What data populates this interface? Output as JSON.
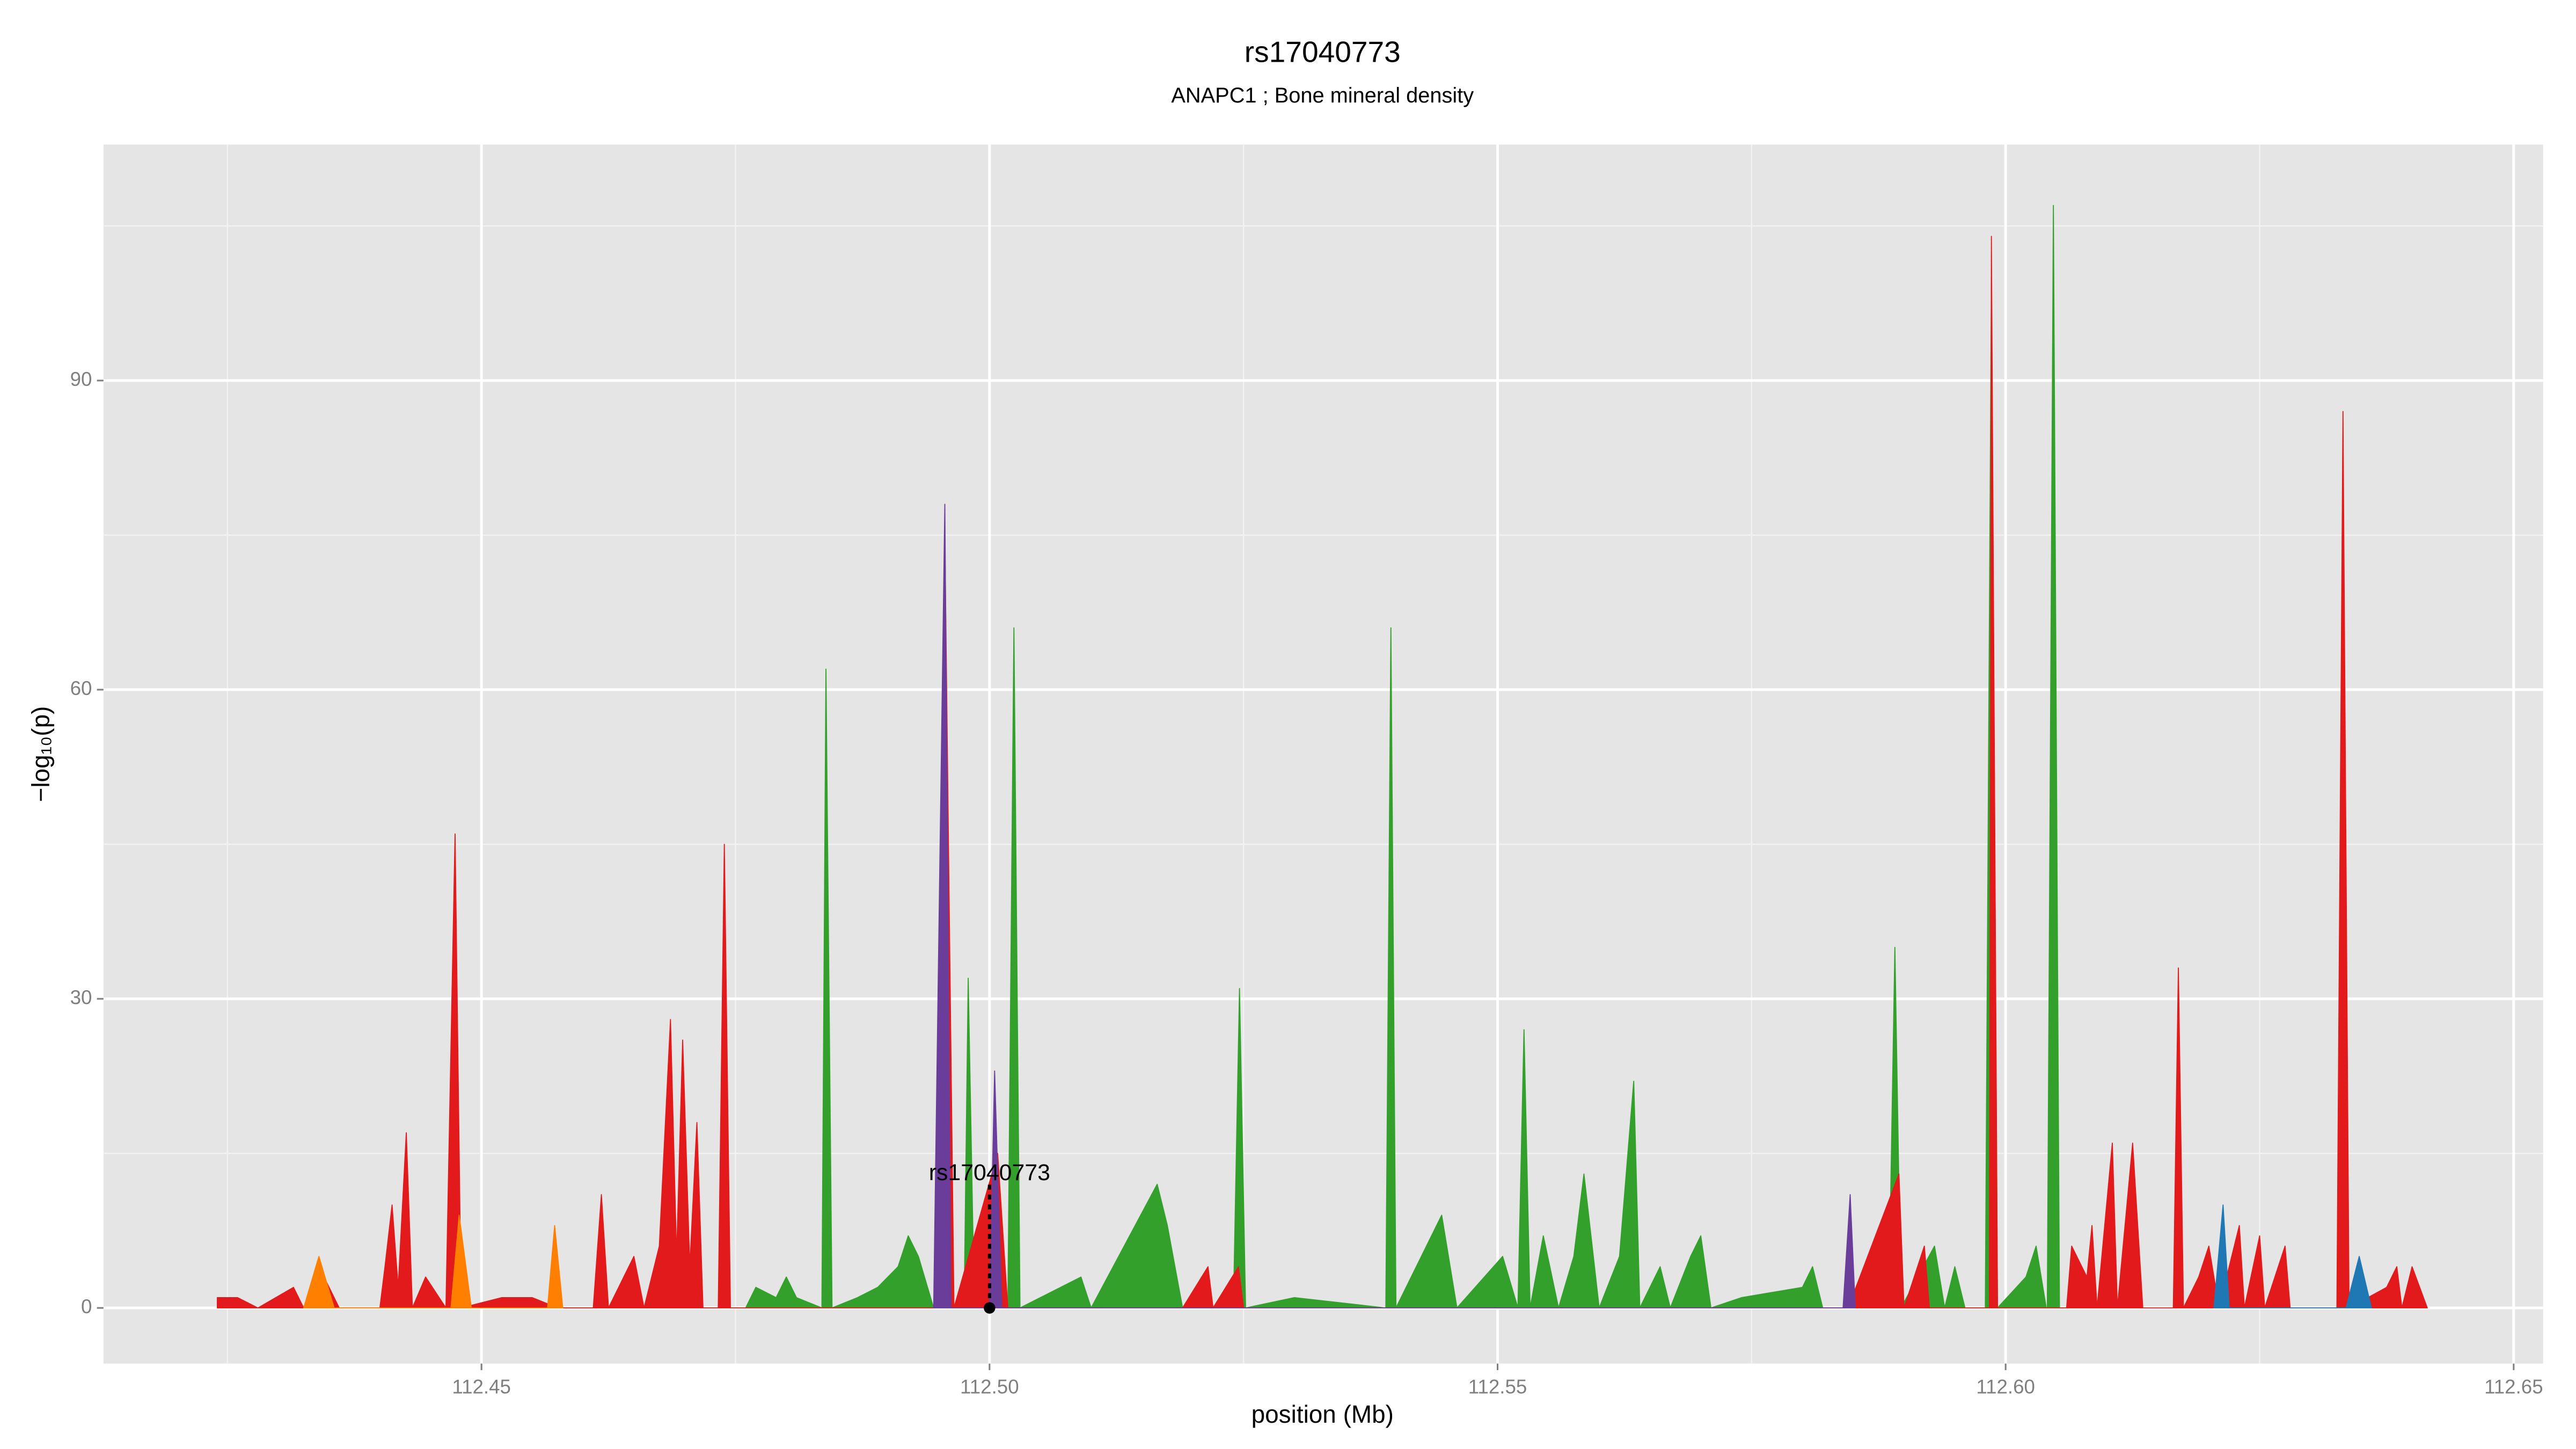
{
  "chart_data": {
    "type": "area",
    "title": "rs17040773",
    "subtitle": "ANAPC1 ; Bone mineral density",
    "x_label": "position (Mb)",
    "y_label": "−log₁₀(p)",
    "xlim": [
      112.4128,
      112.6529
    ],
    "ylim": [
      -5.4,
      112.9
    ],
    "xticks": [
      112.45,
      {
        "value": 112.5,
        "label": "112.50"
      },
      112.55,
      {
        "value": 112.6,
        "label": "112.60"
      },
      112.65
    ],
    "yticks": [
      0,
      30,
      60,
      90
    ],
    "grid": true,
    "series": [
      {
        "name": "green",
        "color": "#33a02c",
        "x": [
          112.4505,
          112.453,
          112.455,
          112.476,
          112.477,
          112.479,
          112.48,
          112.481,
          112.4835,
          112.4839,
          112.4845,
          112.487,
          112.489,
          112.491,
          112.492,
          112.493,
          112.4945,
          112.4975,
          112.4979,
          112.4985,
          112.5018,
          112.5024,
          112.503,
          112.509,
          112.51,
          112.5165,
          112.5175,
          112.519,
          112.524,
          112.5246,
          112.5252,
          112.53,
          112.539,
          112.5395,
          112.54,
          112.5445,
          112.546,
          112.5505,
          112.552,
          112.5526,
          112.5532,
          112.5545,
          112.556,
          112.5575,
          112.5585,
          112.56,
          112.562,
          112.5634,
          112.564,
          112.566,
          112.567,
          112.569,
          112.57,
          112.571,
          112.574,
          112.58,
          112.581,
          112.582,
          112.5885,
          112.5891,
          112.5897,
          112.593,
          112.594,
          112.595,
          112.596,
          112.598,
          112.5986,
          112.5992,
          112.602,
          112.603,
          112.604,
          112.6041,
          112.6047,
          112.6053,
          112.607
        ],
        "values": [
          0,
          1,
          0,
          0,
          2,
          1,
          3,
          1,
          0,
          62,
          0,
          1,
          2,
          4,
          7,
          5,
          0,
          0,
          32,
          0,
          0,
          66,
          0,
          3,
          0,
          12,
          8,
          0,
          0,
          31,
          0,
          1,
          0,
          66,
          0,
          9,
          0,
          5,
          0,
          27,
          0,
          7,
          0,
          5,
          13,
          0,
          5,
          22,
          0,
          4,
          0,
          5,
          7,
          0,
          1,
          2,
          4,
          0,
          0,
          35,
          0,
          6,
          0,
          4,
          0,
          0,
          100,
          0,
          3,
          6,
          0,
          0,
          107,
          0,
          0
        ]
      },
      {
        "name": "red",
        "color": "#e31a1c",
        "x": [
          112.424,
          112.426,
          112.428,
          112.4315,
          112.4325,
          112.4345,
          112.436,
          112.44,
          112.4405,
          112.4412,
          112.4418,
          112.4426,
          112.4432,
          112.4445,
          112.4465,
          112.4474,
          112.448,
          112.452,
          112.455,
          112.4575,
          112.461,
          112.4618,
          112.4625,
          112.465,
          112.466,
          112.4675,
          112.4686,
          112.4692,
          112.4698,
          112.4705,
          112.4712,
          112.4718,
          112.4733,
          112.4739,
          112.4745,
          112.4947,
          112.4956,
          112.4965,
          112.5008,
          112.5018,
          112.519,
          112.5215,
          112.522,
          112.5245,
          112.525,
          112.5845,
          112.5895,
          112.59,
          112.592,
          112.5925,
          112.5984,
          112.5986,
          112.5992,
          112.606,
          112.6065,
          112.608,
          112.6085,
          112.609,
          112.6105,
          112.611,
          112.6125,
          112.6135,
          112.6165,
          112.617,
          112.6175,
          112.619,
          112.62,
          112.621,
          112.623,
          112.6235,
          112.625,
          112.6255,
          112.6275,
          112.628,
          112.6326,
          112.6332,
          112.6338,
          112.6375,
          112.6385,
          112.639,
          112.64,
          112.6415
        ],
        "values": [
          1,
          1,
          0,
          2,
          0,
          3,
          0,
          0,
          4,
          10,
          2,
          17,
          0,
          3,
          0,
          46,
          0,
          1,
          1,
          0,
          0,
          11,
          0,
          5,
          0,
          6,
          28,
          5,
          26,
          4,
          18,
          0,
          0,
          45,
          0,
          0,
          75,
          0,
          15,
          0,
          0,
          4,
          0,
          4,
          0,
          0,
          13,
          0,
          6,
          0,
          0,
          104,
          0,
          0,
          6,
          3,
          8,
          0,
          16,
          0,
          16,
          0,
          0,
          33,
          0,
          3,
          6,
          0,
          8,
          0,
          7,
          0,
          6,
          0,
          0,
          87,
          0,
          2,
          4,
          0,
          4,
          0
        ]
      },
      {
        "name": "orange",
        "color": "#ff7f00",
        "x": [
          112.4325,
          112.434,
          112.4355,
          112.447,
          112.4478,
          112.449,
          112.4565,
          112.4572,
          112.458
        ],
        "values": [
          0,
          5,
          0,
          0,
          9,
          0,
          0,
          8,
          0
        ]
      },
      {
        "name": "purple",
        "color": "#6a3d9a",
        "x": [
          112.4945,
          112.4956,
          112.4962,
          112.5,
          112.5005,
          112.5012,
          112.584,
          112.5847,
          112.5852
        ],
        "values": [
          0,
          78,
          0,
          0,
          23,
          0,
          0,
          11,
          0
        ]
      },
      {
        "name": "blue",
        "color": "#1f78b4",
        "x": [
          112.6205,
          112.6214,
          112.622,
          112.6335,
          112.6348,
          112.636
        ],
        "values": [
          0,
          10,
          0,
          0,
          5,
          0
        ]
      }
    ],
    "annotation": {
      "text": "rs17040773",
      "x": 112.5,
      "y": 13
    },
    "marker": {
      "x": 112.5,
      "y": 0
    }
  }
}
